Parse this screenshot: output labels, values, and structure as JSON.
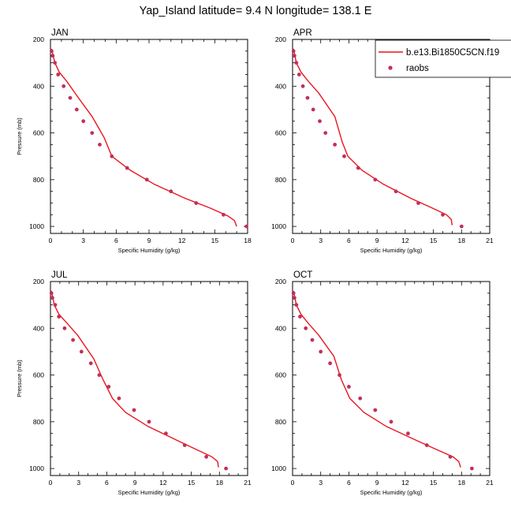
{
  "title": "Yap_Island  latitude= 9.4 N longitude= 138.1 E",
  "colors": {
    "model_line": "#e8161d",
    "obs_marker": "#c2305a",
    "axis": "#000000"
  },
  "legend": {
    "placement": "top-right",
    "entries": [
      "b.e13.Bi1850C5CN.f19",
      "raobs"
    ]
  },
  "chart_data": [
    {
      "type": "line",
      "panel_label": "JAN",
      "xlabel": "Specific Humidity (g/kg)",
      "ylabel": "Pressure (mb)",
      "xlim": [
        0,
        18
      ],
      "ylim": [
        200,
        1030
      ],
      "y_inverted": true,
      "xticks": [
        0,
        3,
        6,
        9,
        12,
        15,
        18
      ],
      "yticks": [
        200,
        400,
        600,
        800,
        1000
      ],
      "series": [
        {
          "name": "b.e13.Bi1850C5CN.f19",
          "kind": "line",
          "x": [
            0.1,
            0.2,
            0.4,
            0.8,
            1.5,
            2.4,
            3.8,
            4.9,
            5.6,
            7.3,
            9.5,
            12.3,
            14.5,
            16.2,
            16.8,
            17.0
          ],
          "y": [
            240,
            260,
            300,
            340,
            380,
            440,
            530,
            620,
            700,
            760,
            820,
            880,
            920,
            955,
            975,
            1000
          ]
        },
        {
          "name": "raobs",
          "kind": "scatter",
          "x": [
            0.1,
            0.2,
            0.4,
            0.7,
            1.2,
            1.8,
            2.4,
            3.0,
            3.8,
            4.5,
            5.6,
            7.0,
            8.8,
            11.0,
            13.3,
            15.8,
            17.9
          ],
          "y": [
            250,
            270,
            300,
            350,
            400,
            450,
            500,
            550,
            600,
            650,
            700,
            750,
            800,
            850,
            900,
            950,
            1000
          ]
        }
      ]
    },
    {
      "type": "line",
      "panel_label": "APR",
      "xlabel": "Specific Humidity (g/kg)",
      "ylabel": "",
      "xlim": [
        0,
        21
      ],
      "ylim": [
        200,
        1030
      ],
      "y_inverted": true,
      "xticks": [
        0,
        3,
        6,
        9,
        12,
        15,
        18,
        21
      ],
      "yticks": [
        200,
        400,
        600,
        800,
        1000
      ],
      "series": [
        {
          "name": "b.e13.Bi1850C5CN.f19",
          "kind": "line",
          "x": [
            0.1,
            0.2,
            0.4,
            0.9,
            1.7,
            2.8,
            4.5,
            5.3,
            5.9,
            7.4,
            9.7,
            12.6,
            14.8,
            16.4,
            16.9,
            17.0
          ],
          "y": [
            240,
            260,
            300,
            340,
            380,
            430,
            530,
            640,
            700,
            760,
            820,
            880,
            920,
            950,
            970,
            995
          ]
        },
        {
          "name": "raobs",
          "kind": "scatter",
          "x": [
            0.1,
            0.2,
            0.4,
            0.7,
            1.1,
            1.6,
            2.2,
            2.9,
            3.5,
            4.5,
            5.5,
            7.0,
            8.8,
            11.0,
            13.4,
            16.0,
            18.0
          ],
          "y": [
            250,
            270,
            300,
            350,
            400,
            450,
            500,
            550,
            600,
            650,
            700,
            750,
            800,
            850,
            900,
            950,
            1000
          ]
        }
      ]
    },
    {
      "type": "line",
      "panel_label": "JUL",
      "xlabel": "Specific Humidity (g/kg)",
      "ylabel": "Pressure (mb)",
      "xlim": [
        0,
        21
      ],
      "ylim": [
        200,
        1030
      ],
      "y_inverted": true,
      "xticks": [
        0,
        3,
        6,
        9,
        12,
        15,
        18,
        21
      ],
      "yticks": [
        200,
        400,
        600,
        800,
        1000
      ],
      "series": [
        {
          "name": "b.e13.Bi1850C5CN.f19",
          "kind": "line",
          "x": [
            0.1,
            0.2,
            0.4,
            0.9,
            1.8,
            2.9,
            4.6,
            5.6,
            6.6,
            8.0,
            10.4,
            13.5,
            15.6,
            17.2,
            17.8,
            17.9
          ],
          "y": [
            240,
            260,
            300,
            340,
            380,
            430,
            530,
            620,
            700,
            760,
            820,
            880,
            920,
            950,
            970,
            995
          ]
        },
        {
          "name": "raobs",
          "kind": "scatter",
          "x": [
            0.1,
            0.2,
            0.5,
            0.9,
            1.5,
            2.4,
            3.3,
            4.3,
            5.2,
            6.2,
            7.3,
            8.9,
            10.5,
            12.3,
            14.3,
            16.6,
            18.7
          ],
          "y": [
            250,
            270,
            300,
            350,
            400,
            450,
            500,
            550,
            600,
            650,
            700,
            750,
            800,
            850,
            900,
            950,
            1000
          ]
        }
      ]
    },
    {
      "type": "line",
      "panel_label": "OCT",
      "xlabel": "Specific Humidity (g/kg)",
      "ylabel": "",
      "xlim": [
        0,
        21
      ],
      "ylim": [
        200,
        1030
      ],
      "y_inverted": true,
      "xticks": [
        0,
        3,
        6,
        9,
        12,
        15,
        18,
        21
      ],
      "yticks": [
        200,
        400,
        600,
        800,
        1000
      ],
      "series": [
        {
          "name": "b.e13.Bi1850C5CN.f19",
          "kind": "line",
          "x": [
            0.1,
            0.2,
            0.4,
            0.9,
            1.7,
            2.8,
            4.4,
            5.2,
            6.1,
            7.6,
            10.0,
            13.2,
            15.4,
            17.1,
            17.7,
            17.9
          ],
          "y": [
            240,
            260,
            300,
            340,
            380,
            430,
            520,
            620,
            700,
            760,
            820,
            880,
            920,
            950,
            970,
            995
          ]
        },
        {
          "name": "raobs",
          "kind": "scatter",
          "x": [
            0.1,
            0.2,
            0.4,
            0.8,
            1.4,
            2.1,
            3.0,
            4.0,
            5.0,
            6.0,
            7.2,
            8.8,
            10.5,
            12.3,
            14.3,
            16.8,
            19.1
          ],
          "y": [
            250,
            270,
            300,
            350,
            400,
            450,
            500,
            550,
            600,
            650,
            700,
            750,
            800,
            850,
            900,
            950,
            1000
          ]
        }
      ]
    }
  ]
}
